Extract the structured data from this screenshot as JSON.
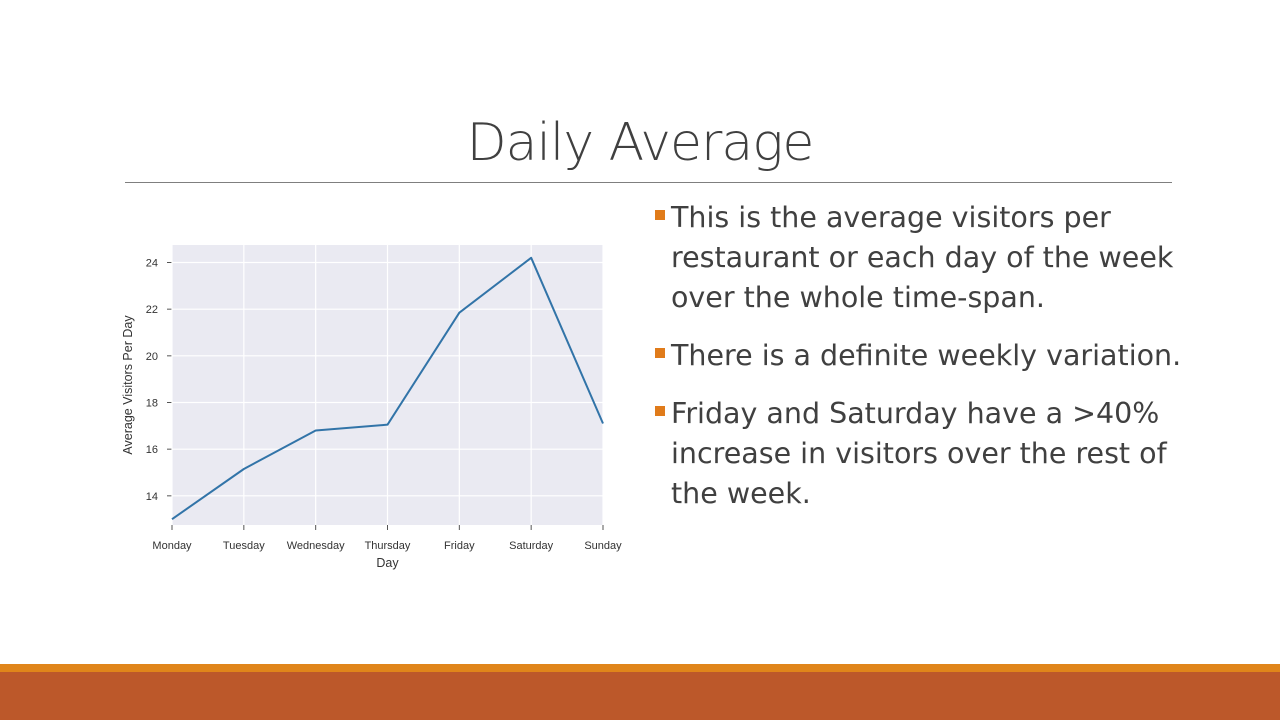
{
  "slide": {
    "title": "Daily Average",
    "bullets": [
      "This is the average visitors per restaurant or each day of the week over the whole time-span.",
      "There is a definite weekly variation.",
      "Friday and Saturday have a >40% increase in visitors over the rest of the week."
    ]
  },
  "colors": {
    "accent": "#E07B1A",
    "footer_thin": "#E0851A",
    "footer_bar": "#BC582A",
    "line": "#3274A8",
    "plot_bg": "#EAEAF2"
  },
  "chart_data": {
    "type": "line",
    "categories": [
      "Monday",
      "Tuesday",
      "Wednesday",
      "Thursday",
      "Friday",
      "Saturday",
      "Sunday"
    ],
    "values": [
      13.0,
      15.15,
      16.8,
      17.05,
      21.85,
      24.2,
      17.1
    ],
    "xlabel": "Day",
    "ylabel": "Average Visitors Per Day",
    "yticks": [
      14,
      16,
      18,
      20,
      22,
      24
    ],
    "ylim": [
      12.75,
      24.75
    ],
    "grid": true
  }
}
